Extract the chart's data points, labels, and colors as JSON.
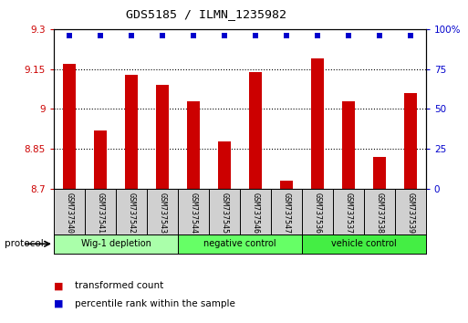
{
  "title": "GDS5185 / ILMN_1235982",
  "samples": [
    "GSM737540",
    "GSM737541",
    "GSM737542",
    "GSM737543",
    "GSM737544",
    "GSM737545",
    "GSM737546",
    "GSM737547",
    "GSM737536",
    "GSM737537",
    "GSM737538",
    "GSM737539"
  ],
  "transformed_counts": [
    9.17,
    8.92,
    9.13,
    9.09,
    9.03,
    8.88,
    9.14,
    8.73,
    9.19,
    9.03,
    8.82,
    9.06
  ],
  "ylim_left": [
    8.7,
    9.3
  ],
  "ylim_right": [
    0,
    100
  ],
  "yticks_left": [
    8.7,
    8.85,
    9.0,
    9.15,
    9.3
  ],
  "yticks_right": [
    0,
    25,
    50,
    75,
    100
  ],
  "ytick_labels_left": [
    "8.7",
    "8.85",
    "9",
    "9.15",
    "9.3"
  ],
  "ytick_labels_right": [
    "0",
    "25",
    "50",
    "75",
    "100%"
  ],
  "groups": [
    {
      "label": "Wig-1 depletion",
      "indices": [
        0,
        1,
        2,
        3
      ],
      "color": "#aaffaa"
    },
    {
      "label": "negative control",
      "indices": [
        4,
        5,
        6,
        7
      ],
      "color": "#66ff66"
    },
    {
      "label": "vehicle control",
      "indices": [
        8,
        9,
        10,
        11
      ],
      "color": "#44ee44"
    }
  ],
  "bar_color": "#cc0000",
  "dot_color": "#0000cc",
  "bar_width": 0.4,
  "dot_size": 5,
  "bg_color": "#ffffff",
  "label_bg_color": "#d0d0d0",
  "legend_red_label": "transformed count",
  "legend_blue_label": "percentile rank within the sample",
  "protocol_label": "protocol"
}
